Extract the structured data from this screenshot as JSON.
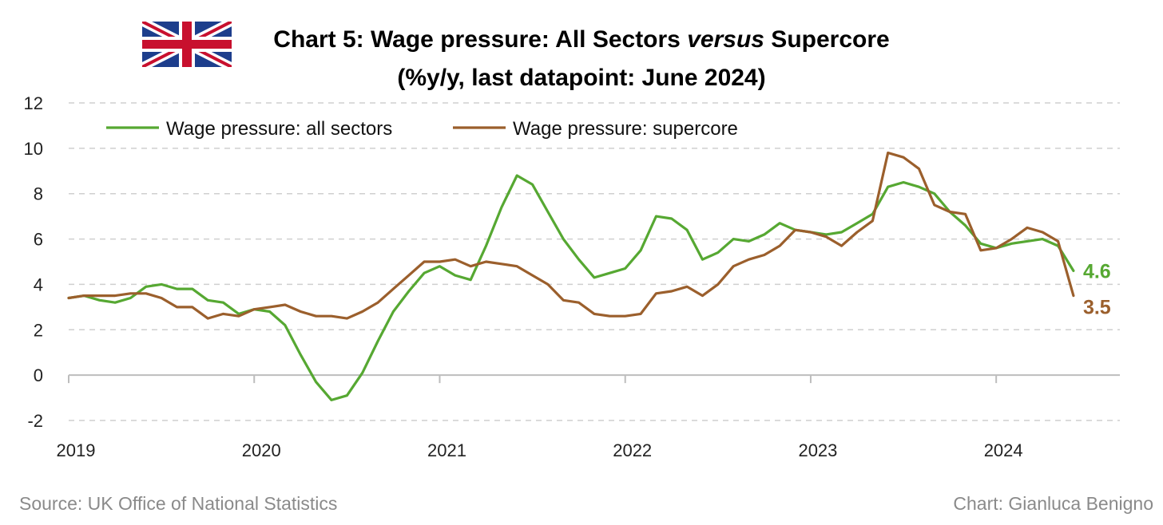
{
  "header": {
    "title_part1": "Chart 5: Wage pressure: All Sectors ",
    "title_emphasis": "versus",
    "title_part2": " Supercore",
    "subtitle": "(%y/y, last datapoint: June 2024)",
    "flag_icon": "uk-flag-icon"
  },
  "footer": {
    "source": "Source: UK Office of National Statistics",
    "credit": "Chart: Gianluca Benigno"
  },
  "colors": {
    "all_sectors": "#56a832",
    "supercore": "#9b5f2c",
    "grid": "#cfcfcf",
    "axis": "#bdbdbd"
  },
  "chart_data": {
    "type": "line",
    "x_start": "2019-01",
    "x_end": "2024-06",
    "frequency": "monthly",
    "xlim": [
      "2019-01",
      "2024-09"
    ],
    "ylim": [
      -2,
      12
    ],
    "yticks": [
      -2,
      0,
      2,
      4,
      6,
      8,
      10,
      12
    ],
    "xticks": [
      "2019",
      "2020",
      "2021",
      "2022",
      "2023",
      "2024"
    ],
    "grid": "horizontal-dashed",
    "legend_position": "top-left",
    "series": [
      {
        "name": "Wage pressure: all sectors",
        "color": "#56a832",
        "end_label": "4.6",
        "values": [
          3.4,
          3.5,
          3.3,
          3.2,
          3.4,
          3.9,
          4.0,
          3.8,
          3.8,
          3.3,
          3.2,
          2.7,
          2.9,
          2.8,
          2.2,
          0.9,
          -0.3,
          -1.1,
          -0.9,
          0.1,
          1.5,
          2.8,
          3.7,
          4.5,
          4.8,
          4.4,
          4.2,
          5.7,
          7.4,
          8.8,
          8.4,
          7.2,
          6.0,
          5.1,
          4.3,
          4.5,
          4.7,
          5.5,
          7.0,
          6.9,
          6.4,
          5.1,
          5.4,
          6.0,
          5.9,
          6.2,
          6.7,
          6.4,
          6.3,
          6.2,
          6.3,
          6.7,
          7.1,
          8.3,
          8.5,
          8.3,
          8.0,
          7.2,
          6.6,
          5.8,
          5.6,
          5.8,
          5.9,
          6.0,
          5.7,
          4.6
        ]
      },
      {
        "name": "Wage pressure: supercore",
        "color": "#9b5f2c",
        "end_label": "3.5",
        "values": [
          3.4,
          3.5,
          3.5,
          3.5,
          3.6,
          3.6,
          3.4,
          3.0,
          3.0,
          2.5,
          2.7,
          2.6,
          2.9,
          3.0,
          3.1,
          2.8,
          2.6,
          2.6,
          2.5,
          2.8,
          3.2,
          3.8,
          4.4,
          5.0,
          5.0,
          5.1,
          4.8,
          5.0,
          4.9,
          4.8,
          4.4,
          4.0,
          3.3,
          3.2,
          2.7,
          2.6,
          2.6,
          2.7,
          3.6,
          3.7,
          3.9,
          3.5,
          4.0,
          4.8,
          5.1,
          5.3,
          5.7,
          6.4,
          6.3,
          6.1,
          5.7,
          6.3,
          6.8,
          9.8,
          9.6,
          9.1,
          7.5,
          7.2,
          7.1,
          5.5,
          5.6,
          6.0,
          6.5,
          6.3,
          5.9,
          3.5
        ]
      }
    ]
  }
}
